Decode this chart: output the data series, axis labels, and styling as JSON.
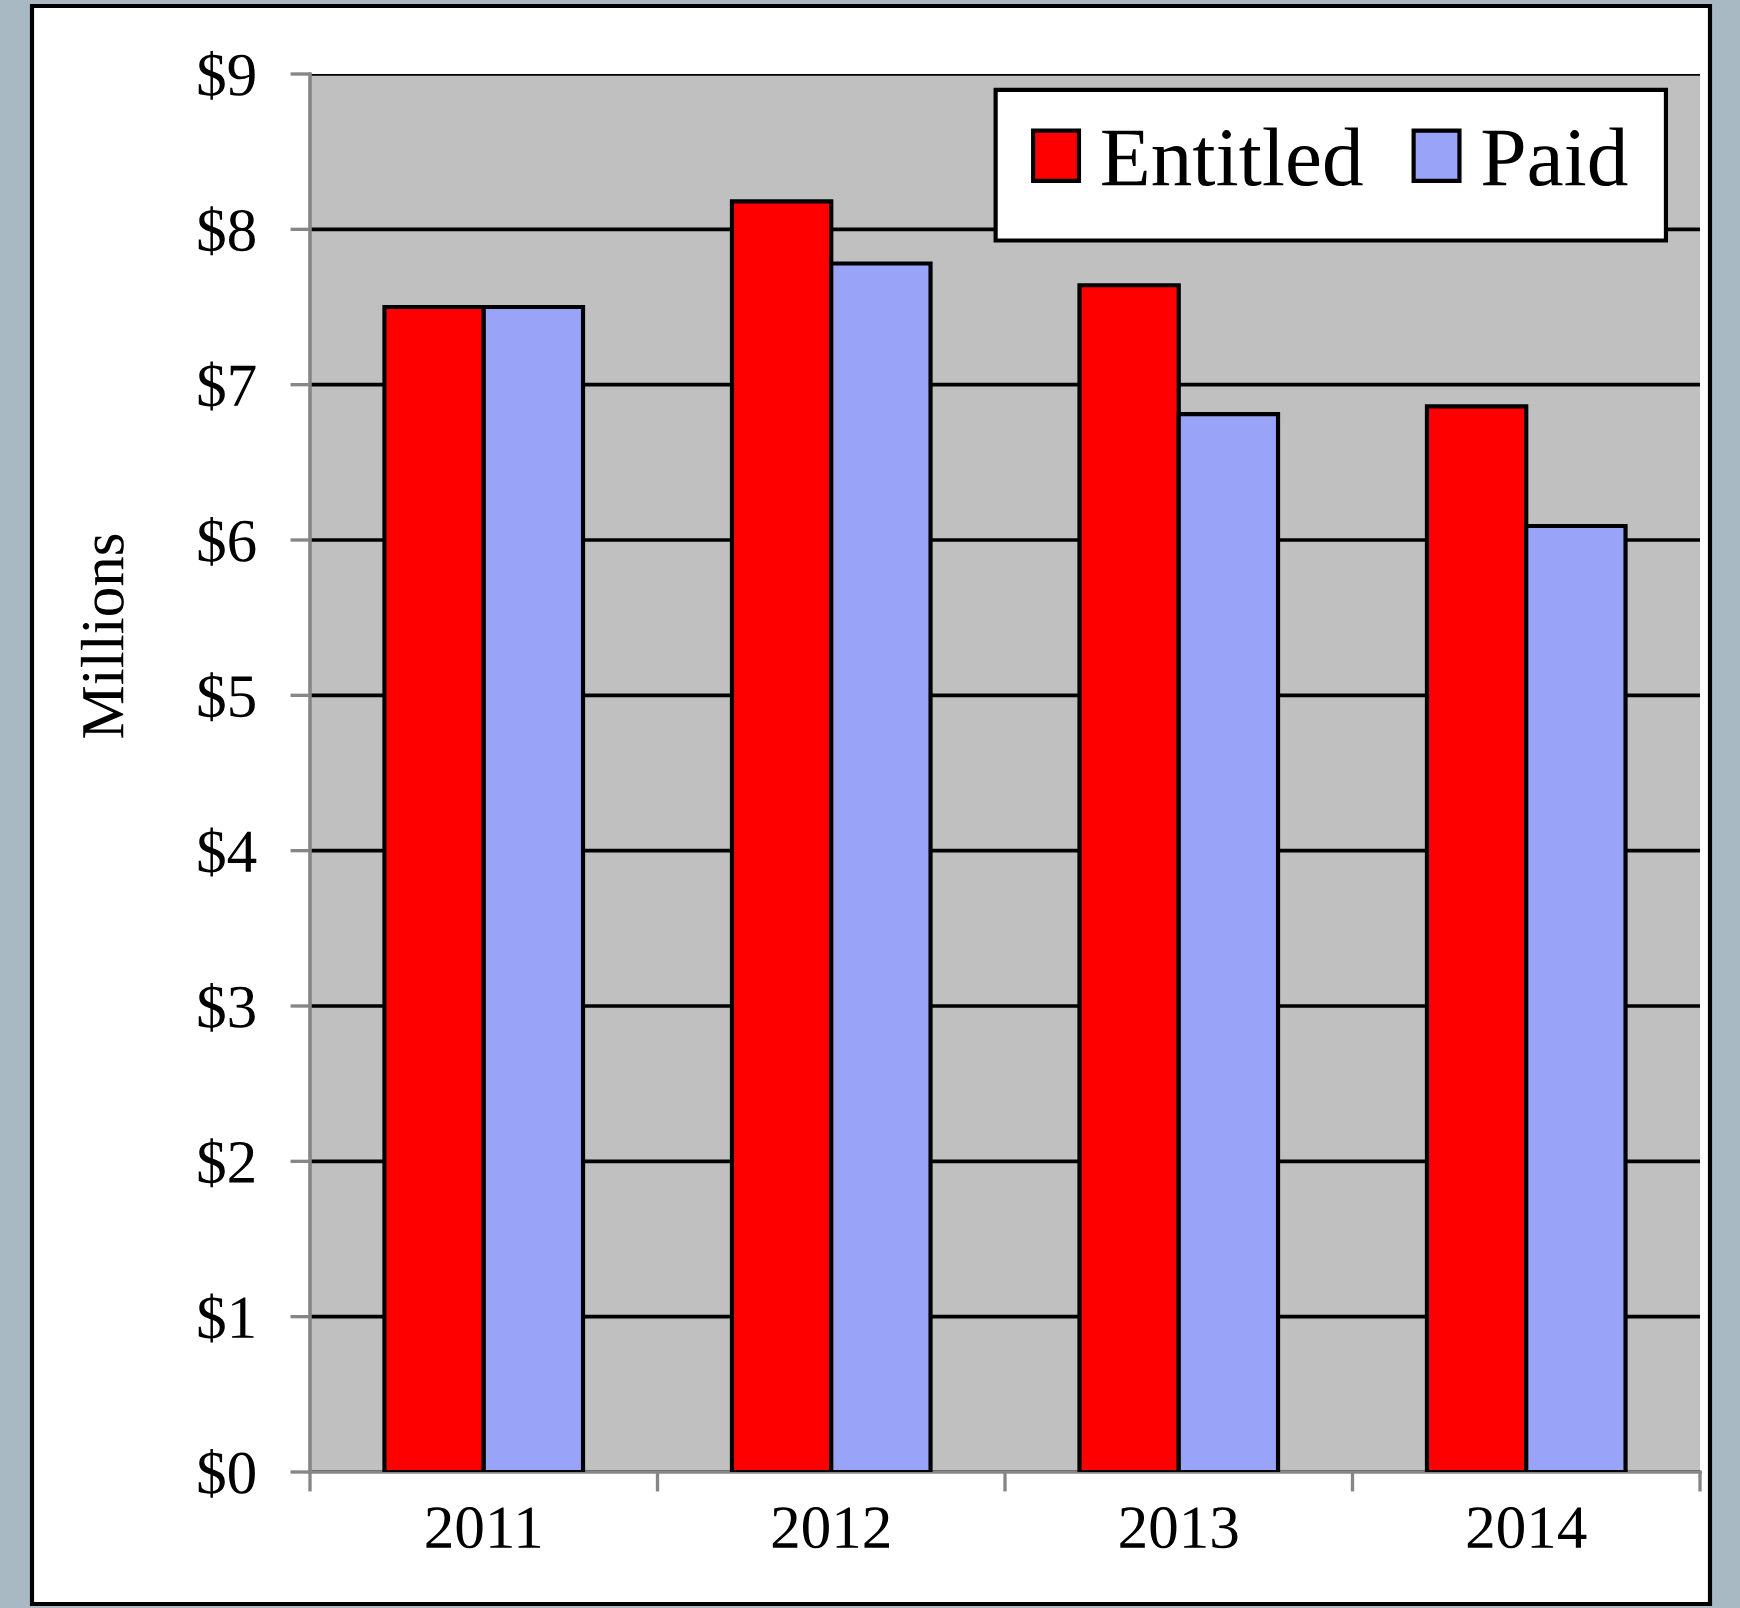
{
  "chart_data": {
    "type": "bar",
    "ylabel": "Millions",
    "categories": [
      "2011",
      "2012",
      "2013",
      "2014"
    ],
    "series": [
      {
        "name": "Entitled",
        "color": "#ff0000",
        "values": [
          7.5,
          8.18,
          7.64,
          6.86
        ]
      },
      {
        "name": "Paid",
        "color": "#99a4f8",
        "values": [
          7.5,
          7.78,
          6.81,
          6.09
        ]
      }
    ],
    "ylim": [
      0,
      9
    ],
    "yticks": [
      {
        "value": 0,
        "label": "$0"
      },
      {
        "value": 1,
        "label": "$1"
      },
      {
        "value": 2,
        "label": "$2"
      },
      {
        "value": 3,
        "label": "$3"
      },
      {
        "value": 4,
        "label": "$4"
      },
      {
        "value": 5,
        "label": "$5"
      },
      {
        "value": 6,
        "label": "$6"
      },
      {
        "value": 7,
        "label": "$7"
      },
      {
        "value": 8,
        "label": "$8"
      },
      {
        "value": 9,
        "label": "$9"
      }
    ],
    "grid": "y",
    "legend": "top right"
  }
}
